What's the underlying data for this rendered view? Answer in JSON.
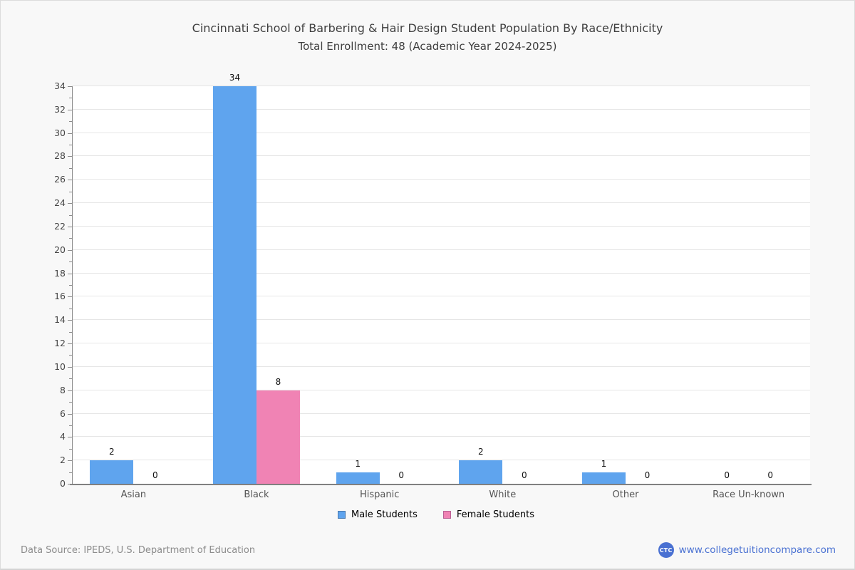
{
  "header": {
    "title": "Cincinnati School of Barbering & Hair Design Student Population By Race/Ethnicity",
    "subtitle": "Total Enrollment: 48 (Academic Year 2024-2025)"
  },
  "chart_data": {
    "type": "bar",
    "categories": [
      "Asian",
      "Black",
      "Hispanic",
      "White",
      "Other",
      "Race Un-known"
    ],
    "series": [
      {
        "name": "Male Students",
        "color": "#5fa4ee",
        "border_color": "#4878ad",
        "values": [
          2,
          34,
          1,
          2,
          1,
          0
        ]
      },
      {
        "name": "Female Students",
        "color": "#f083b4",
        "border_color": "#b85f93",
        "values": [
          0,
          8,
          0,
          0,
          0,
          0
        ]
      }
    ],
    "ylim": [
      0,
      34
    ],
    "y_tick_step": 2,
    "grid": "horizontal",
    "legend_position": "bottom",
    "plot_background": "#ffffff",
    "gridline_color": "#e6e6e6",
    "axis_color": "#8a8a8a"
  },
  "footer": {
    "source": "Data Source: IPEDS, U.S. Department of Education",
    "logo_text": "CTC",
    "website": "www.collegetuitioncompare.com",
    "brand_color": "#4a71d2"
  }
}
